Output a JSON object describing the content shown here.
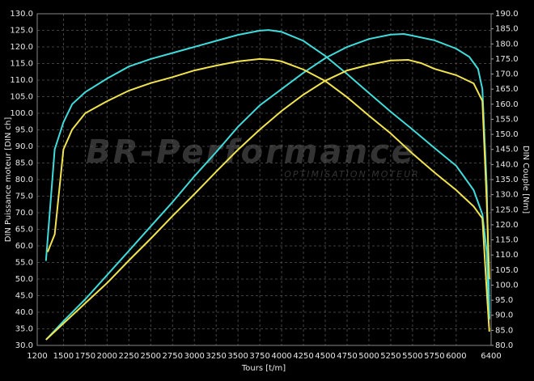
{
  "chart_data": {
    "type": "line",
    "x_label": "Tours [t/m]",
    "y_label": "DIN Puissance moteur [DIN ch]",
    "y2_label": "DIN Couple [Nm]",
    "watermark": "BR-Performance",
    "watermark_sub": "OPTIMISATION MOTEUR",
    "xlim": [
      1200,
      6400
    ],
    "xticks": [
      1200,
      1500,
      1750,
      2000,
      2250,
      2500,
      2750,
      3000,
      3250,
      3500,
      3750,
      4000,
      4250,
      4500,
      4750,
      5000,
      5250,
      5500,
      5750,
      6000,
      6400
    ],
    "ylim": [
      30,
      130
    ],
    "yticks": [
      {
        "value": 30,
        "label": "30.0"
      },
      {
        "value": 35,
        "label": "35.0"
      },
      {
        "value": 40,
        "label": "40.0"
      },
      {
        "value": 45,
        "label": "45.0"
      },
      {
        "value": 50,
        "label": "50.0"
      },
      {
        "value": 55,
        "label": "55.0"
      },
      {
        "value": 60,
        "label": "60.0"
      },
      {
        "value": 65,
        "label": "65.0"
      },
      {
        "value": 70,
        "label": "70.0"
      },
      {
        "value": 75,
        "label": "75.0"
      },
      {
        "value": 80,
        "label": "80.0"
      },
      {
        "value": 85,
        "label": "85.0"
      },
      {
        "value": 90,
        "label": "90.0"
      },
      {
        "value": 95,
        "label": "95.0"
      },
      {
        "value": 100,
        "label": "100.0"
      },
      {
        "value": 105,
        "label": "105.0"
      },
      {
        "value": 110,
        "label": "110.0"
      },
      {
        "value": 115,
        "label": "115.0"
      },
      {
        "value": 120,
        "label": "120.0"
      },
      {
        "value": 125,
        "label": "125.0"
      },
      {
        "value": 130,
        "label": "130.0"
      }
    ],
    "y2lim": [
      80,
      190
    ],
    "y2ticks": [
      {
        "value": 80,
        "label": "80.0"
      },
      {
        "value": 85,
        "label": "85.0"
      },
      {
        "value": 90,
        "label": "90.0"
      },
      {
        "value": 95,
        "label": "95.0"
      },
      {
        "value": 100,
        "label": "100.0"
      },
      {
        "value": 105,
        "label": "105.0"
      },
      {
        "value": 110,
        "label": "110.0"
      },
      {
        "value": 115,
        "label": "115.0"
      },
      {
        "value": 120,
        "label": "120.0"
      },
      {
        "value": 125,
        "label": "125.0"
      },
      {
        "value": 130,
        "label": "130.0"
      },
      {
        "value": 135,
        "label": "135.0"
      },
      {
        "value": 140,
        "label": "140.0"
      },
      {
        "value": 145,
        "label": "145.0"
      },
      {
        "value": 150,
        "label": "150.0"
      },
      {
        "value": 155,
        "label": "155.0"
      },
      {
        "value": 160,
        "label": "160.0"
      },
      {
        "value": 165,
        "label": "165.0"
      },
      {
        "value": 170,
        "label": "170.0"
      },
      {
        "value": 175,
        "label": "175.0"
      },
      {
        "value": 180,
        "label": "180.0"
      },
      {
        "value": 185,
        "label": "185.0"
      },
      {
        "value": 190,
        "label": "190.0"
      }
    ],
    "grid": true,
    "series": [
      {
        "color": "#3fdcdc",
        "axis": "y2",
        "x": [
          1300,
          1400,
          1500,
          1600,
          1750,
          2000,
          2250,
          2500,
          2750,
          3000,
          3250,
          3500,
          3750,
          3850,
          4000,
          4250,
          4500,
          4750,
          5000,
          5250,
          5500,
          5750,
          6000,
          6200,
          6300,
          6350,
          6380
        ],
        "values": [
          108,
          145,
          154,
          160,
          164,
          168.5,
          172.5,
          175,
          177,
          179,
          181,
          183,
          184.4,
          184.6,
          184,
          181,
          176,
          170,
          163.7,
          157.5,
          151.6,
          145.5,
          139.6,
          131.5,
          123.5,
          111,
          88.6
        ]
      },
      {
        "color": "#3fdcdc",
        "x": [
          1300,
          1500,
          1750,
          2000,
          2250,
          2500,
          2750,
          3000,
          3250,
          3500,
          3750,
          4000,
          4250,
          4500,
          4750,
          5000,
          5250,
          5400,
          5500,
          5750,
          6000,
          6150,
          6250,
          6300,
          6350,
          6380
        ],
        "values": [
          31.7,
          37.3,
          43.9,
          51.2,
          58.5,
          65.9,
          73.2,
          81,
          88.3,
          95.9,
          102.4,
          107.3,
          112.2,
          116.6,
          120,
          122.4,
          123.7,
          123.9,
          123.4,
          122,
          119.5,
          117,
          113.4,
          107.3,
          78,
          38.3
        ]
      },
      {
        "color": "#f2e44e",
        "axis": "y2",
        "x": [
          1320,
          1400,
          1500,
          1600,
          1750,
          2000,
          2250,
          2500,
          2750,
          3000,
          3250,
          3500,
          3750,
          3900,
          4000,
          4250,
          4500,
          4750,
          5000,
          5250,
          5500,
          5750,
          6000,
          6200,
          6300,
          6350,
          6380
        ],
        "values": [
          111,
          116.8,
          145,
          151.6,
          157,
          161,
          164.5,
          167,
          169,
          171.2,
          172.8,
          174.2,
          175,
          174.7,
          174.2,
          171.5,
          167.7,
          162.3,
          156.2,
          150.3,
          143.6,
          137.4,
          131.5,
          126.1,
          122.1,
          98,
          84.6
        ]
      },
      {
        "color": "#f2e44e",
        "x": [
          1300,
          1500,
          1750,
          2000,
          2250,
          2500,
          2750,
          3000,
          3250,
          3500,
          3750,
          4000,
          4250,
          4500,
          4750,
          5000,
          5250,
          5450,
          5600,
          5750,
          6000,
          6200,
          6300,
          6350,
          6380
        ],
        "values": [
          31.7,
          36.6,
          42.7,
          48.8,
          55.6,
          62.2,
          69,
          75.6,
          82.4,
          89,
          95.1,
          100.7,
          105.6,
          109.8,
          112.9,
          114.6,
          115.9,
          116.1,
          115.1,
          113.4,
          111.5,
          109,
          103.7,
          73.2,
          50
        ]
      }
    ]
  }
}
